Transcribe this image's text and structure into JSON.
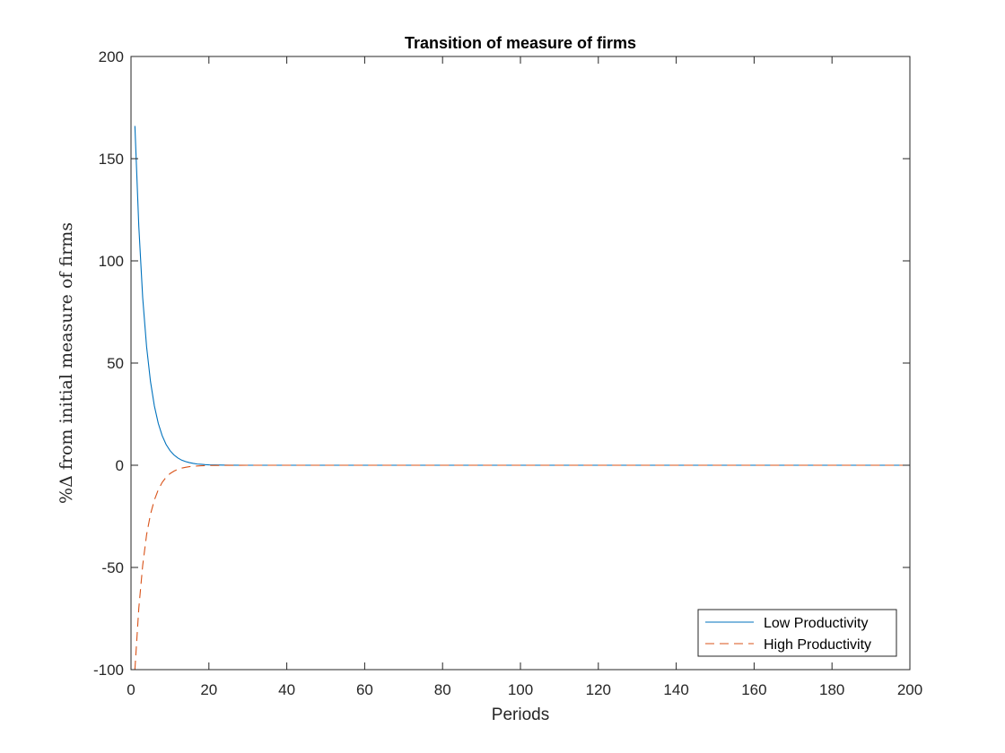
{
  "chart_data": {
    "type": "line",
    "title": "Transition of measure of firms",
    "xlabel": "Periods",
    "ylabel": "%Δ from initial measure of firms",
    "xlim": [
      0,
      200
    ],
    "ylim": [
      -100,
      200
    ],
    "xticks": [
      0,
      20,
      40,
      60,
      80,
      100,
      120,
      140,
      160,
      180,
      200
    ],
    "yticks": [
      -100,
      -50,
      0,
      50,
      100,
      150,
      200
    ],
    "grid": false,
    "legend_position": "bottom-right",
    "series": [
      {
        "name": "Low Productivity",
        "color": "#0072bd",
        "line_style": "solid",
        "x": [
          1,
          2,
          3,
          4,
          5,
          6,
          7,
          8,
          9,
          10,
          11,
          12,
          13,
          14,
          15,
          16,
          17,
          18,
          19,
          20,
          25,
          30,
          40,
          60,
          80,
          100,
          120,
          140,
          160,
          180,
          200
        ],
        "values": [
          166,
          117,
          82,
          58,
          41,
          29,
          20.5,
          14.5,
          10.2,
          7.2,
          5.1,
          3.6,
          2.5,
          1.8,
          1.3,
          0.9,
          0.6,
          0.45,
          0.3,
          0.2,
          0.05,
          0,
          0,
          0,
          0,
          0,
          0,
          0,
          0,
          0,
          0
        ]
      },
      {
        "name": "High Productivity",
        "color": "#d95319",
        "line_style": "dashed",
        "x": [
          1,
          2,
          3,
          4,
          5,
          6,
          7,
          8,
          9,
          10,
          11,
          12,
          13,
          14,
          15,
          16,
          17,
          18,
          19,
          20,
          25,
          30,
          40,
          60,
          80,
          100,
          120,
          140,
          160,
          180,
          200
        ],
        "values": [
          -100,
          -70,
          -49,
          -34,
          -24,
          -17,
          -12,
          -8.4,
          -5.9,
          -4.1,
          -2.9,
          -2.0,
          -1.4,
          -1.0,
          -0.7,
          -0.5,
          -0.35,
          -0.25,
          -0.17,
          -0.12,
          -0.03,
          0,
          0,
          0,
          0,
          0,
          0,
          0,
          0,
          0,
          0
        ]
      }
    ]
  }
}
